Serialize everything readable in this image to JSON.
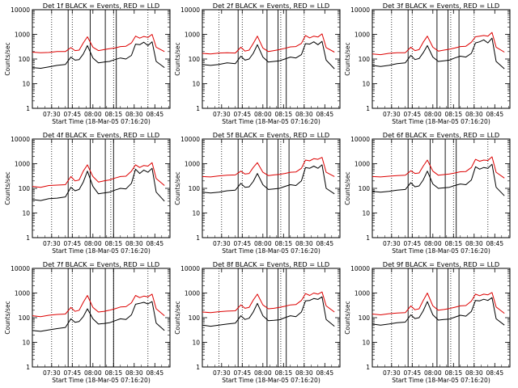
{
  "figure": {
    "ylabel": "Counts/sec",
    "xlabel": "Start Time (18-Mar-05 07:16:20)",
    "x_tick_labels": [
      "07:30",
      "07:45",
      "08:00",
      "08:15",
      "08:30",
      "08:45"
    ],
    "y_tick_labels": [
      "1",
      "10",
      "100",
      "1000",
      "10000"
    ],
    "colors": {
      "events": "#000000",
      "lld": "#dd0000"
    }
  },
  "chart_data": [
    {
      "type": "line",
      "title": "Det 1f BLACK = Events, RED = LLD",
      "x": [
        "07:16",
        "07:22",
        "07:28",
        "07:34",
        "07:40",
        "07:44",
        "07:47",
        "07:50",
        "07:53",
        "07:56",
        "08:00",
        "08:04",
        "08:08",
        "08:12",
        "08:16",
        "08:20",
        "08:24",
        "08:28",
        "08:31",
        "08:34",
        "08:37",
        "08:40",
        "08:43",
        "08:46",
        "08:52"
      ],
      "ylim": [
        1,
        10000
      ],
      "yscale": "log",
      "series": [
        {
          "name": "BLACK = Events",
          "values": [
            45,
            42,
            48,
            55,
            60,
            120,
            90,
            95,
            160,
            350,
            110,
            70,
            75,
            80,
            95,
            110,
            100,
            140,
            400,
            380,
            480,
            350,
            500,
            80,
            45
          ]
        },
        {
          "name": "RED = LLD",
          "values": [
            190,
            180,
            185,
            200,
            200,
            290,
            220,
            230,
            450,
            800,
            300,
            220,
            240,
            260,
            280,
            320,
            330,
            450,
            850,
            700,
            820,
            750,
            1000,
            300,
            200
          ]
        }
      ],
      "vlines_dotted": [
        "07:30",
        "07:45",
        "08:15",
        "08:40"
      ],
      "vlines_solid": [
        "07:42",
        "07:58",
        "08:09",
        "08:17"
      ]
    },
    {
      "type": "line",
      "title": "Det 2f BLACK = Events, RED = LLD",
      "x": [
        "07:16",
        "07:22",
        "07:28",
        "07:34",
        "07:40",
        "07:44",
        "07:47",
        "07:50",
        "07:53",
        "07:56",
        "08:00",
        "08:04",
        "08:08",
        "08:12",
        "08:16",
        "08:20",
        "08:24",
        "08:28",
        "08:31",
        "08:34",
        "08:37",
        "08:40",
        "08:43",
        "08:46",
        "08:52"
      ],
      "ylim": [
        1,
        10000
      ],
      "yscale": "log",
      "series": [
        {
          "name": "BLACK = Events",
          "values": [
            60,
            55,
            60,
            70,
            65,
            130,
            90,
            100,
            170,
            380,
            120,
            75,
            80,
            85,
            100,
            120,
            110,
            150,
            420,
            400,
            500,
            380,
            520,
            90,
            40
          ]
        },
        {
          "name": "RED = LLD",
          "values": [
            170,
            160,
            175,
            180,
            175,
            300,
            210,
            230,
            430,
            850,
            280,
            200,
            220,
            240,
            270,
            310,
            320,
            430,
            900,
            720,
            850,
            780,
            1050,
            290,
            190
          ]
        }
      ],
      "vlines_dotted": [
        "07:28",
        "07:45",
        "08:13",
        "08:30"
      ],
      "vlines_solid": [
        "07:42",
        "08:03",
        "08:11",
        "08:17"
      ]
    },
    {
      "type": "line",
      "title": "Det 3f BLACK = Events, RED = LLD",
      "x": [
        "07:16",
        "07:22",
        "07:28",
        "07:34",
        "07:40",
        "07:44",
        "07:47",
        "07:50",
        "07:53",
        "07:56",
        "08:00",
        "08:04",
        "08:08",
        "08:12",
        "08:16",
        "08:20",
        "08:24",
        "08:28",
        "08:31",
        "08:34",
        "08:37",
        "08:40",
        "08:43",
        "08:46",
        "08:52"
      ],
      "ylim": [
        1,
        10000
      ],
      "yscale": "log",
      "series": [
        {
          "name": "BLACK = Events",
          "values": [
            55,
            50,
            55,
            65,
            70,
            140,
            95,
            105,
            180,
            350,
            120,
            80,
            85,
            90,
            110,
            130,
            120,
            170,
            450,
            500,
            600,
            450,
            700,
            80,
            40
          ]
        },
        {
          "name": "RED = LLD",
          "values": [
            160,
            150,
            170,
            180,
            180,
            300,
            220,
            240,
            480,
            850,
            300,
            210,
            230,
            250,
            280,
            320,
            330,
            480,
            800,
            850,
            900,
            850,
            1200,
            300,
            190
          ]
        }
      ],
      "vlines_dotted": [
        "07:30",
        "07:45",
        "08:13",
        "08:30"
      ],
      "vlines_solid": [
        "07:42",
        "08:03",
        "08:11",
        "08:19"
      ]
    },
    {
      "type": "line",
      "title": "Det 4f BLACK = Events, RED = LLD",
      "x": [
        "07:16",
        "07:22",
        "07:28",
        "07:34",
        "07:40",
        "07:44",
        "07:47",
        "07:50",
        "07:53",
        "07:56",
        "08:00",
        "08:04",
        "08:08",
        "08:12",
        "08:16",
        "08:20",
        "08:24",
        "08:28",
        "08:31",
        "08:34",
        "08:37",
        "08:40",
        "08:43",
        "08:46",
        "08:52"
      ],
      "ylim": [
        1,
        10000
      ],
      "yscale": "log",
      "series": [
        {
          "name": "BLACK = Events",
          "values": [
            35,
            32,
            38,
            40,
            45,
            110,
            80,
            90,
            180,
            500,
            120,
            60,
            65,
            70,
            85,
            100,
            95,
            160,
            600,
            400,
            550,
            450,
            650,
            70,
            30
          ]
        },
        {
          "name": "RED = LLD",
          "values": [
            120,
            110,
            130,
            135,
            140,
            300,
            200,
            220,
            500,
            900,
            300,
            180,
            200,
            220,
            260,
            300,
            310,
            500,
            900,
            700,
            850,
            800,
            1100,
            250,
            130
          ]
        }
      ],
      "vlines_dotted": [
        "07:30",
        "07:45",
        "08:13",
        "08:30"
      ],
      "vlines_solid": [
        "07:42",
        "07:58",
        "08:09",
        "08:15"
      ]
    },
    {
      "type": "line",
      "title": "Det 5f BLACK = Events, RED = LLD",
      "x": [
        "07:16",
        "07:22",
        "07:28",
        "07:34",
        "07:40",
        "07:44",
        "07:47",
        "07:50",
        "07:53",
        "07:56",
        "08:00",
        "08:04",
        "08:08",
        "08:12",
        "08:16",
        "08:20",
        "08:24",
        "08:28",
        "08:31",
        "08:34",
        "08:37",
        "08:40",
        "08:43",
        "08:46",
        "08:52"
      ],
      "ylim": [
        1,
        10000
      ],
      "yscale": "log",
      "series": [
        {
          "name": "BLACK = Events",
          "values": [
            70,
            65,
            70,
            80,
            85,
            160,
            110,
            115,
            190,
            400,
            140,
            90,
            95,
            100,
            120,
            140,
            130,
            200,
            700,
            650,
            800,
            650,
            900,
            100,
            60
          ]
        },
        {
          "name": "RED = LLD",
          "values": [
            300,
            290,
            320,
            340,
            350,
            500,
            380,
            400,
            700,
            1100,
            450,
            330,
            350,
            370,
            400,
            450,
            460,
            650,
            1400,
            1300,
            1600,
            1500,
            1800,
            450,
            300
          ]
        }
      ],
      "vlines_dotted": [
        "07:30",
        "07:45",
        "08:13",
        "08:30"
      ],
      "vlines_solid": [
        "07:42",
        "08:03",
        "08:11",
        "08:19"
      ]
    },
    {
      "type": "line",
      "title": "Det 6f BLACK = Events, RED = LLD",
      "x": [
        "07:16",
        "07:22",
        "07:28",
        "07:34",
        "07:40",
        "07:44",
        "07:47",
        "07:50",
        "07:53",
        "07:56",
        "08:00",
        "08:04",
        "08:08",
        "08:12",
        "08:16",
        "08:20",
        "08:24",
        "08:28",
        "08:31",
        "08:34",
        "08:37",
        "08:40",
        "08:43",
        "08:46",
        "08:52"
      ],
      "ylim": [
        1,
        10000
      ],
      "yscale": "log",
      "series": [
        {
          "name": "BLACK = Events",
          "values": [
            75,
            70,
            75,
            85,
            90,
            170,
            115,
            125,
            220,
            500,
            150,
            100,
            105,
            110,
            130,
            150,
            140,
            220,
            750,
            600,
            700,
            650,
            950,
            110,
            50
          ]
        },
        {
          "name": "RED = LLD",
          "values": [
            300,
            290,
            310,
            330,
            340,
            520,
            400,
            420,
            800,
            1400,
            500,
            340,
            360,
            380,
            420,
            470,
            480,
            700,
            1500,
            1250,
            1400,
            1350,
            1900,
            450,
            260
          ]
        }
      ],
      "vlines_dotted": [
        "07:30",
        "07:45",
        "08:15",
        "08:40"
      ],
      "vlines_solid": [
        "07:42",
        "07:58",
        "08:09",
        "08:17"
      ]
    },
    {
      "type": "line",
      "title": "Det 7f BLACK = Events, RED = LLD",
      "x": [
        "07:16",
        "07:22",
        "07:28",
        "07:34",
        "07:40",
        "07:44",
        "07:47",
        "07:50",
        "07:53",
        "07:56",
        "08:00",
        "08:04",
        "08:08",
        "08:12",
        "08:16",
        "08:20",
        "08:24",
        "08:28",
        "08:31",
        "08:34",
        "08:37",
        "08:40",
        "08:43",
        "08:46",
        "08:52"
      ],
      "ylim": [
        1,
        10000
      ],
      "yscale": "log",
      "series": [
        {
          "name": "BLACK = Events",
          "values": [
            30,
            28,
            32,
            36,
            40,
            90,
            65,
            70,
            110,
            230,
            90,
            55,
            58,
            62,
            75,
            90,
            85,
            130,
            350,
            380,
            420,
            360,
            450,
            60,
            30
          ]
        },
        {
          "name": "RED = LLD",
          "values": [
            120,
            110,
            125,
            135,
            140,
            260,
            180,
            200,
            420,
            800,
            260,
            170,
            180,
            200,
            230,
            270,
            280,
            400,
            800,
            650,
            750,
            700,
            900,
            230,
            120
          ]
        }
      ],
      "vlines_dotted": [
        "07:30",
        "07:45",
        "08:15",
        "08:40"
      ],
      "vlines_solid": [
        "07:42",
        "07:58",
        "08:09",
        "08:15"
      ]
    },
    {
      "type": "line",
      "title": "Det 8f BLACK = Events, RED = LLD",
      "x": [
        "07:16",
        "07:22",
        "07:28",
        "07:34",
        "07:40",
        "07:44",
        "07:47",
        "07:50",
        "07:53",
        "07:56",
        "08:00",
        "08:04",
        "08:08",
        "08:12",
        "08:16",
        "08:20",
        "08:24",
        "08:28",
        "08:31",
        "08:34",
        "08:37",
        "08:40",
        "08:43",
        "08:46",
        "08:52"
      ],
      "ylim": [
        1,
        10000
      ],
      "yscale": "log",
      "series": [
        {
          "name": "BLACK = Events",
          "values": [
            50,
            45,
            50,
            55,
            60,
            120,
            85,
            95,
            170,
            380,
            120,
            75,
            78,
            82,
            100,
            120,
            110,
            170,
            480,
            500,
            600,
            550,
            700,
            85,
            45
          ]
        },
        {
          "name": "RED = LLD",
          "values": [
            170,
            160,
            175,
            185,
            190,
            330,
            240,
            260,
            520,
            900,
            330,
            230,
            240,
            260,
            290,
            330,
            340,
            500,
            950,
            800,
            1000,
            900,
            1100,
            300,
            170
          ]
        }
      ],
      "vlines_dotted": [
        "07:28",
        "07:45",
        "08:13",
        "08:30"
      ],
      "vlines_solid": [
        "07:42",
        "08:03",
        "08:11",
        "08:17"
      ]
    },
    {
      "type": "line",
      "title": "Det 9f BLACK = Events, RED = LLD",
      "x": [
        "07:16",
        "07:22",
        "07:28",
        "07:34",
        "07:40",
        "07:44",
        "07:47",
        "07:50",
        "07:53",
        "07:56",
        "08:00",
        "08:04",
        "08:08",
        "08:12",
        "08:16",
        "08:20",
        "08:24",
        "08:28",
        "08:31",
        "08:34",
        "08:37",
        "08:40",
        "08:43",
        "08:46",
        "08:52"
      ],
      "ylim": [
        1,
        10000
      ],
      "yscale": "log",
      "series": [
        {
          "name": "BLACK = Events",
          "values": [
            55,
            50,
            55,
            62,
            66,
            130,
            92,
            100,
            190,
            450,
            130,
            80,
            84,
            88,
            105,
            125,
            115,
            180,
            500,
            480,
            560,
            500,
            650,
            90,
            50
          ]
        },
        {
          "name": "RED = LLD",
          "values": [
            140,
            130,
            145,
            155,
            160,
            300,
            210,
            230,
            500,
            1000,
            300,
            200,
            215,
            235,
            265,
            300,
            310,
            470,
            900,
            780,
            900,
            850,
            1050,
            270,
            150
          ]
        }
      ],
      "vlines_dotted": [
        "07:30",
        "07:45",
        "08:13",
        "08:30"
      ],
      "vlines_solid": [
        "07:42",
        "08:03",
        "08:11",
        "08:19"
      ]
    }
  ]
}
